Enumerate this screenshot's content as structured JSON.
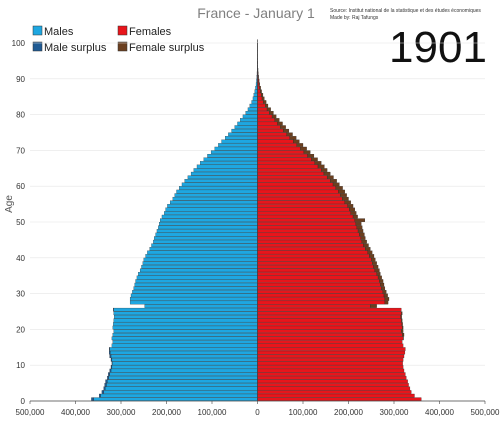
{
  "chart_data": {
    "type": "bar",
    "orientation": "horizontal-population-pyramid",
    "title": "France - January 1",
    "year": "1901",
    "source_line1": "Source: Institut national de la statistique et des études économiques",
    "source_line2": "Made by: Raj Tafungs",
    "ylabel": "Age",
    "xlim": [
      -500000,
      500000
    ],
    "ylim": [
      0,
      100
    ],
    "x_ticks": [
      {
        "value": -500000,
        "label": "500,000"
      },
      {
        "value": -400000,
        "label": "400,000"
      },
      {
        "value": -300000,
        "label": "300,000"
      },
      {
        "value": -200000,
        "label": "200,000"
      },
      {
        "value": -100000,
        "label": "100,000"
      },
      {
        "value": 0,
        "label": "0"
      },
      {
        "value": 100000,
        "label": "100,000"
      },
      {
        "value": 200000,
        "label": "200,000"
      },
      {
        "value": 300000,
        "label": "300,000"
      },
      {
        "value": 400000,
        "label": "400,000"
      },
      {
        "value": 500000,
        "label": "500,000"
      }
    ],
    "y_ticks": [
      0,
      10,
      20,
      30,
      40,
      50,
      60,
      70,
      80,
      90,
      100
    ],
    "legend": [
      {
        "label": "Males",
        "color": "#1ea7e1"
      },
      {
        "label": "Females",
        "color": "#e8151b"
      },
      {
        "label": "Male surplus",
        "color": "#1f5a93"
      },
      {
        "label": "Female surplus",
        "color": "#6b3f1f"
      }
    ],
    "ages": [
      0,
      1,
      2,
      3,
      4,
      5,
      6,
      7,
      8,
      9,
      10,
      11,
      12,
      13,
      14,
      15,
      16,
      17,
      18,
      19,
      20,
      21,
      22,
      23,
      24,
      25,
      26,
      27,
      28,
      29,
      30,
      31,
      32,
      33,
      34,
      35,
      36,
      37,
      38,
      39,
      40,
      41,
      42,
      43,
      44,
      45,
      46,
      47,
      48,
      49,
      50,
      51,
      52,
      53,
      54,
      55,
      56,
      57,
      58,
      59,
      60,
      61,
      62,
      63,
      64,
      65,
      66,
      67,
      68,
      69,
      70,
      71,
      72,
      73,
      74,
      75,
      76,
      77,
      78,
      79,
      80,
      81,
      82,
      83,
      84,
      85,
      86,
      87,
      88,
      89,
      90,
      91,
      92,
      93,
      94,
      95,
      96,
      97,
      98,
      99,
      100
    ],
    "series": [
      {
        "name": "Males",
        "values": [
          365000,
          348000,
          342000,
          338000,
          336000,
          334000,
          330000,
          328000,
          325000,
          322000,
          320000,
          322000,
          325000,
          326000,
          326000,
          320000,
          318000,
          320000,
          318000,
          316000,
          318000,
          317000,
          316000,
          315000,
          316000,
          317000,
          248000,
          280000,
          280000,
          278000,
          275000,
          272000,
          270000,
          268000,
          265000,
          262000,
          258000,
          255000,
          252000,
          250000,
          246000,
          242000,
          237000,
          233000,
          229000,
          227000,
          224000,
          221000,
          218000,
          216000,
          214000,
          210000,
          205000,
          202000,
          198000,
          192000,
          186000,
          182000,
          178000,
          172000,
          166000,
          160000,
          153000,
          146000,
          140000,
          133000,
          126000,
          118000,
          110000,
          102000,
          94000,
          86000,
          79000,
          71000,
          64000,
          57000,
          50000,
          44000,
          38000,
          32000,
          26000,
          21000,
          17000,
          13000,
          10000,
          8000,
          6000,
          4500,
          3200,
          2300,
          1600,
          1100,
          800,
          550,
          380,
          250,
          160,
          100,
          60,
          35,
          20
        ]
      },
      {
        "name": "Females",
        "values": [
          360000,
          345000,
          338000,
          335000,
          332000,
          330000,
          327000,
          325000,
          322000,
          320000,
          319000,
          320000,
          322000,
          324000,
          325000,
          320000,
          318000,
          321000,
          322000,
          320000,
          320000,
          319000,
          318000,
          317000,
          318000,
          316000,
          262000,
          287000,
          289000,
          286000,
          283000,
          280000,
          278000,
          276000,
          273000,
          270000,
          268000,
          265000,
          262000,
          259000,
          256000,
          252000,
          248000,
          244000,
          240000,
          237000,
          235000,
          232000,
          230000,
          228000,
          236000,
          220000,
          217000,
          214000,
          210000,
          205000,
          200000,
          196000,
          192000,
          187000,
          180000,
          174000,
          167000,
          160000,
          153000,
          147000,
          140000,
          132000,
          124000,
          116000,
          108000,
          100000,
          92000,
          85000,
          77000,
          69000,
          62000,
          55000,
          48000,
          41000,
          35000,
          29000,
          23000,
          19000,
          15000,
          12000,
          9000,
          7000,
          5000,
          3700,
          2600,
          1800,
          1200,
          800,
          520,
          330,
          200,
          120,
          70,
          40,
          22
        ]
      }
    ]
  }
}
